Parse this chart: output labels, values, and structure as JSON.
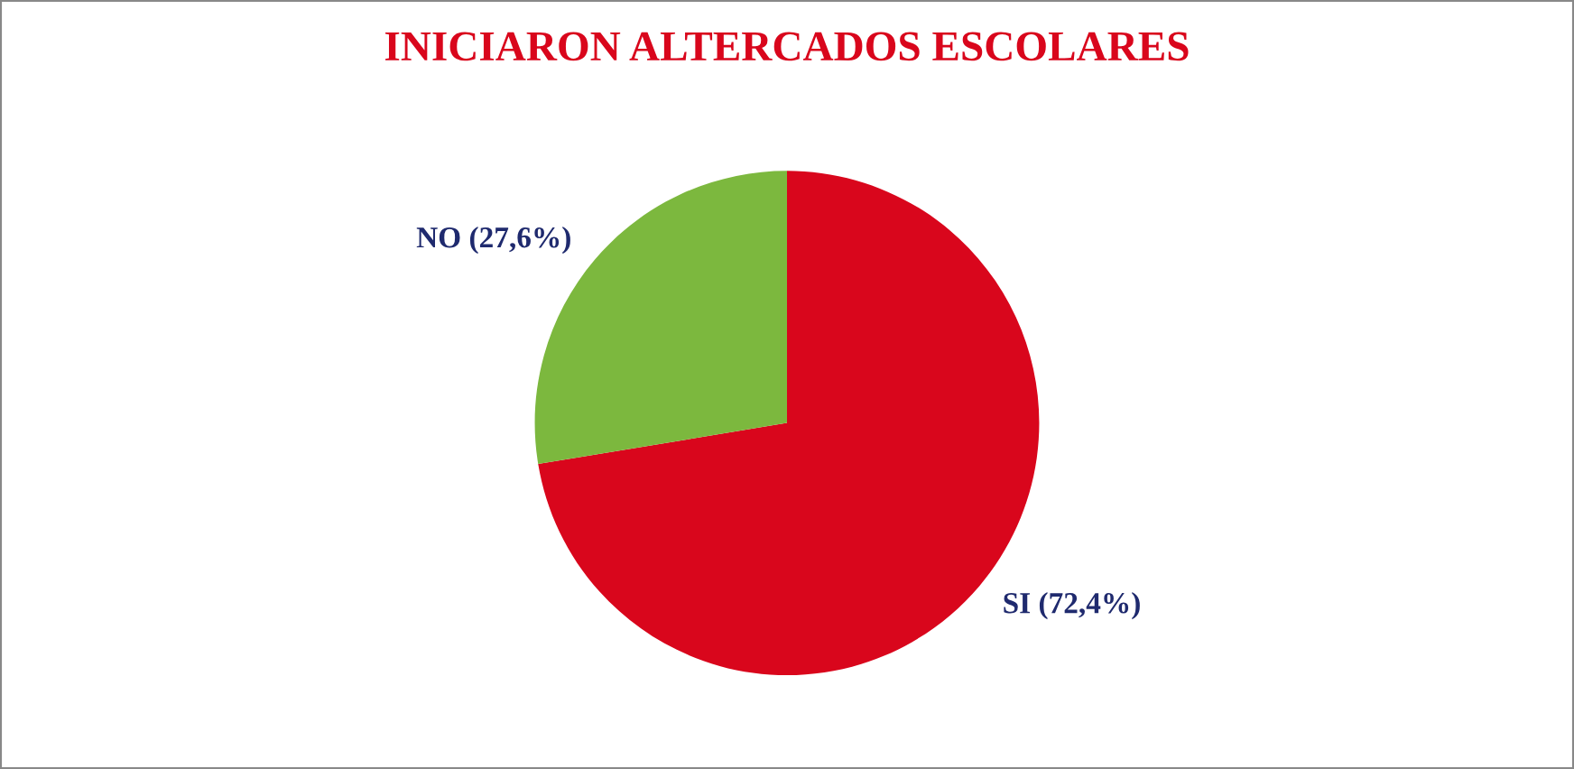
{
  "chart_data": {
    "type": "pie",
    "title": "INICIARON ALTERCADOS ESCOLARES",
    "categories": [
      "SI (72,4%)",
      "NO (27,6%)"
    ],
    "values": [
      72.4,
      27.6
    ],
    "colors": [
      "#d9061c",
      "#7cb83e"
    ]
  }
}
